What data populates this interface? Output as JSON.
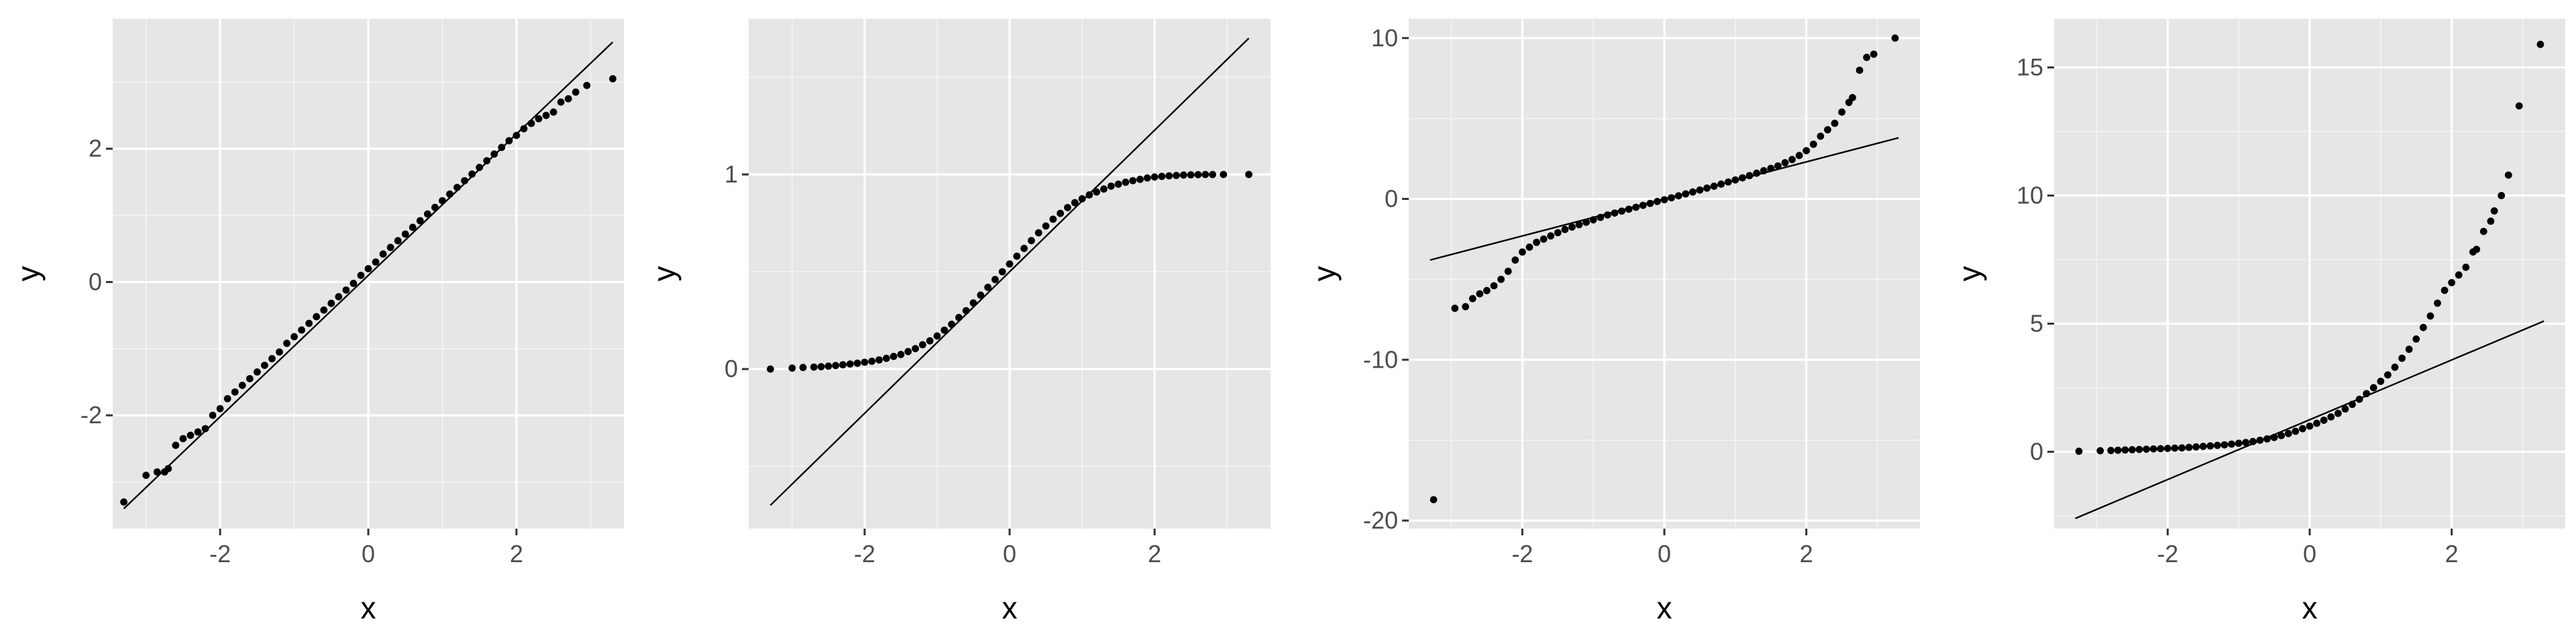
{
  "chart_data": [
    {
      "type": "scatter",
      "xlabel": "x",
      "ylabel": "y",
      "xlim": [
        -3.45,
        3.45
      ],
      "ylim": [
        -3.7,
        3.95
      ],
      "xticks": [
        -2,
        0,
        2
      ],
      "xtick_labels": [
        "-2",
        "0",
        "2"
      ],
      "yticks": [
        -2,
        0,
        2
      ],
      "ytick_labels": [
        "-2",
        "0",
        "2"
      ],
      "grid": true,
      "reference_line": [
        [
          -3.3,
          -3.4
        ],
        [
          3.3,
          3.6
        ]
      ],
      "points": {
        "x": [
          -3.3,
          -3.0,
          -2.85,
          -2.75,
          -2.7,
          -2.6,
          -2.5,
          -2.4,
          -2.3,
          -2.2,
          -2.1,
          -2.0,
          -1.9,
          -1.8,
          -1.7,
          -1.6,
          -1.5,
          -1.4,
          -1.3,
          -1.2,
          -1.1,
          -1.0,
          -0.9,
          -0.8,
          -0.7,
          -0.6,
          -0.5,
          -0.4,
          -0.3,
          -0.2,
          -0.1,
          0.0,
          0.1,
          0.2,
          0.3,
          0.4,
          0.5,
          0.6,
          0.7,
          0.8,
          0.9,
          1.0,
          1.1,
          1.2,
          1.3,
          1.4,
          1.5,
          1.6,
          1.7,
          1.8,
          1.9,
          2.0,
          2.1,
          2.2,
          2.3,
          2.4,
          2.5,
          2.6,
          2.7,
          2.8,
          2.95,
          3.3
        ],
        "y": [
          -3.3,
          -2.9,
          -2.85,
          -2.85,
          -2.8,
          -2.45,
          -2.35,
          -2.3,
          -2.25,
          -2.2,
          -2.0,
          -1.9,
          -1.75,
          -1.65,
          -1.55,
          -1.45,
          -1.35,
          -1.25,
          -1.15,
          -1.05,
          -0.92,
          -0.82,
          -0.72,
          -0.62,
          -0.52,
          -0.42,
          -0.32,
          -0.22,
          -0.12,
          -0.02,
          0.1,
          0.2,
          0.3,
          0.42,
          0.52,
          0.62,
          0.72,
          0.82,
          0.92,
          1.02,
          1.12,
          1.22,
          1.32,
          1.42,
          1.52,
          1.62,
          1.72,
          1.82,
          1.92,
          2.02,
          2.12,
          2.2,
          2.3,
          2.38,
          2.45,
          2.5,
          2.55,
          2.7,
          2.75,
          2.85,
          2.95,
          3.05
        ]
      }
    },
    {
      "type": "scatter",
      "xlabel": "x",
      "ylabel": "y",
      "xlim": [
        -3.6,
        3.6
      ],
      "ylim": [
        -0.82,
        1.8
      ],
      "xticks": [
        -2,
        0,
        2
      ],
      "xtick_labels": [
        "-2",
        "0",
        "2"
      ],
      "yticks": [
        0,
        1
      ],
      "ytick_labels": [
        "0",
        "1"
      ],
      "grid": true,
      "reference_line": [
        [
          -3.3,
          -0.7
        ],
        [
          3.3,
          1.7
        ]
      ],
      "points": {
        "x": [
          -3.3,
          -3.0,
          -2.85,
          -2.7,
          -2.6,
          -2.5,
          -2.4,
          -2.3,
          -2.2,
          -2.1,
          -2.0,
          -1.9,
          -1.8,
          -1.7,
          -1.6,
          -1.5,
          -1.4,
          -1.3,
          -1.2,
          -1.1,
          -1.0,
          -0.9,
          -0.8,
          -0.7,
          -0.6,
          -0.5,
          -0.4,
          -0.3,
          -0.2,
          -0.1,
          0.0,
          0.1,
          0.2,
          0.3,
          0.4,
          0.5,
          0.6,
          0.7,
          0.8,
          0.9,
          1.0,
          1.1,
          1.2,
          1.3,
          1.4,
          1.5,
          1.6,
          1.7,
          1.8,
          1.9,
          2.0,
          2.1,
          2.2,
          2.3,
          2.4,
          2.5,
          2.6,
          2.7,
          2.8,
          2.95,
          3.3
        ],
        "y": [
          0.0,
          0.005,
          0.008,
          0.01,
          0.012,
          0.015,
          0.018,
          0.022,
          0.026,
          0.03,
          0.035,
          0.04,
          0.047,
          0.055,
          0.065,
          0.075,
          0.09,
          0.105,
          0.125,
          0.145,
          0.17,
          0.2,
          0.23,
          0.265,
          0.3,
          0.34,
          0.38,
          0.42,
          0.46,
          0.5,
          0.54,
          0.58,
          0.62,
          0.66,
          0.7,
          0.735,
          0.77,
          0.8,
          0.83,
          0.855,
          0.875,
          0.895,
          0.91,
          0.925,
          0.94,
          0.95,
          0.96,
          0.968,
          0.975,
          0.982,
          0.987,
          0.99,
          0.993,
          0.995,
          0.997,
          0.998,
          0.999,
          0.9995,
          0.9997,
          0.9999,
          1.0
        ]
      }
    },
    {
      "type": "scatter",
      "xlabel": "x",
      "ylabel": "y",
      "xlim": [
        -3.6,
        3.6
      ],
      "ylim": [
        -20.5,
        11.2
      ],
      "xticks": [
        -2,
        0,
        2
      ],
      "xtick_labels": [
        "-2",
        "0",
        "2"
      ],
      "yticks": [
        -20,
        -10,
        0,
        10
      ],
      "ytick_labels": [
        "-20",
        "-10",
        "0",
        "10"
      ],
      "grid": true,
      "reference_line": [
        [
          -3.3,
          -3.8
        ],
        [
          3.3,
          3.8
        ]
      ],
      "points": {
        "x": [
          -3.25,
          -2.95,
          -2.8,
          -2.7,
          -2.6,
          -2.5,
          -2.4,
          -2.3,
          -2.2,
          -2.1,
          -2.0,
          -1.9,
          -1.8,
          -1.7,
          -1.6,
          -1.5,
          -1.4,
          -1.3,
          -1.2,
          -1.1,
          -1.0,
          -0.9,
          -0.8,
          -0.7,
          -0.6,
          -0.5,
          -0.4,
          -0.3,
          -0.2,
          -0.1,
          0.0,
          0.1,
          0.2,
          0.3,
          0.4,
          0.5,
          0.6,
          0.7,
          0.8,
          0.9,
          1.0,
          1.1,
          1.2,
          1.3,
          1.4,
          1.5,
          1.6,
          1.7,
          1.8,
          1.9,
          2.0,
          2.1,
          2.2,
          2.3,
          2.4,
          2.5,
          2.6,
          2.65,
          2.75,
          2.85,
          2.95,
          3.25
        ],
        "y": [
          -18.7,
          -6.8,
          -6.7,
          -6.2,
          -5.9,
          -5.7,
          -5.4,
          -5.0,
          -4.5,
          -3.8,
          -3.3,
          -3.0,
          -2.7,
          -2.5,
          -2.3,
          -2.1,
          -1.9,
          -1.75,
          -1.6,
          -1.45,
          -1.3,
          -1.15,
          -1.0,
          -0.88,
          -0.76,
          -0.64,
          -0.52,
          -0.4,
          -0.28,
          -0.16,
          -0.05,
          0.07,
          0.19,
          0.31,
          0.43,
          0.55,
          0.67,
          0.79,
          0.92,
          1.05,
          1.18,
          1.31,
          1.45,
          1.6,
          1.75,
          1.9,
          2.05,
          2.25,
          2.45,
          2.7,
          3.0,
          3.4,
          3.9,
          4.3,
          4.7,
          5.4,
          6.0,
          6.3,
          8.0,
          8.8,
          9.0,
          10.0
        ]
      }
    },
    {
      "type": "scatter",
      "xlabel": "x",
      "ylabel": "y",
      "xlim": [
        -3.6,
        3.6
      ],
      "ylim": [
        -3.0,
        16.9
      ],
      "xticks": [
        -2,
        0,
        2
      ],
      "xtick_labels": [
        "-2",
        "0",
        "2"
      ],
      "yticks": [
        0,
        5,
        10,
        15
      ],
      "ytick_labels": [
        "0",
        "5",
        "10",
        "15"
      ],
      "grid": true,
      "reference_line": [
        [
          -3.3,
          -2.6
        ],
        [
          3.3,
          5.1
        ]
      ],
      "points": {
        "x": [
          -3.25,
          -2.95,
          -2.8,
          -2.7,
          -2.6,
          -2.5,
          -2.4,
          -2.3,
          -2.2,
          -2.1,
          -2.0,
          -1.9,
          -1.8,
          -1.7,
          -1.6,
          -1.5,
          -1.4,
          -1.3,
          -1.2,
          -1.1,
          -1.0,
          -0.9,
          -0.8,
          -0.7,
          -0.6,
          -0.5,
          -0.4,
          -0.3,
          -0.2,
          -0.1,
          0.0,
          0.1,
          0.2,
          0.3,
          0.4,
          0.5,
          0.6,
          0.7,
          0.8,
          0.9,
          1.0,
          1.1,
          1.2,
          1.3,
          1.4,
          1.5,
          1.6,
          1.7,
          1.8,
          1.9,
          2.0,
          2.1,
          2.2,
          2.3,
          2.35,
          2.45,
          2.55,
          2.6,
          2.7,
          2.8,
          2.95,
          3.25
        ],
        "y": [
          0.02,
          0.04,
          0.05,
          0.06,
          0.07,
          0.08,
          0.09,
          0.1,
          0.11,
          0.12,
          0.13,
          0.14,
          0.15,
          0.17,
          0.19,
          0.21,
          0.23,
          0.25,
          0.27,
          0.3,
          0.33,
          0.36,
          0.4,
          0.45,
          0.5,
          0.56,
          0.63,
          0.71,
          0.8,
          0.9,
          1.0,
          1.11,
          1.23,
          1.36,
          1.5,
          1.67,
          1.85,
          2.05,
          2.27,
          2.5,
          2.75,
          3.0,
          3.3,
          3.65,
          4.0,
          4.4,
          4.85,
          5.3,
          5.8,
          6.3,
          6.6,
          6.9,
          7.2,
          7.8,
          7.9,
          8.6,
          9.0,
          9.4,
          10.0,
          10.8,
          13.5,
          15.9
        ]
      }
    }
  ]
}
